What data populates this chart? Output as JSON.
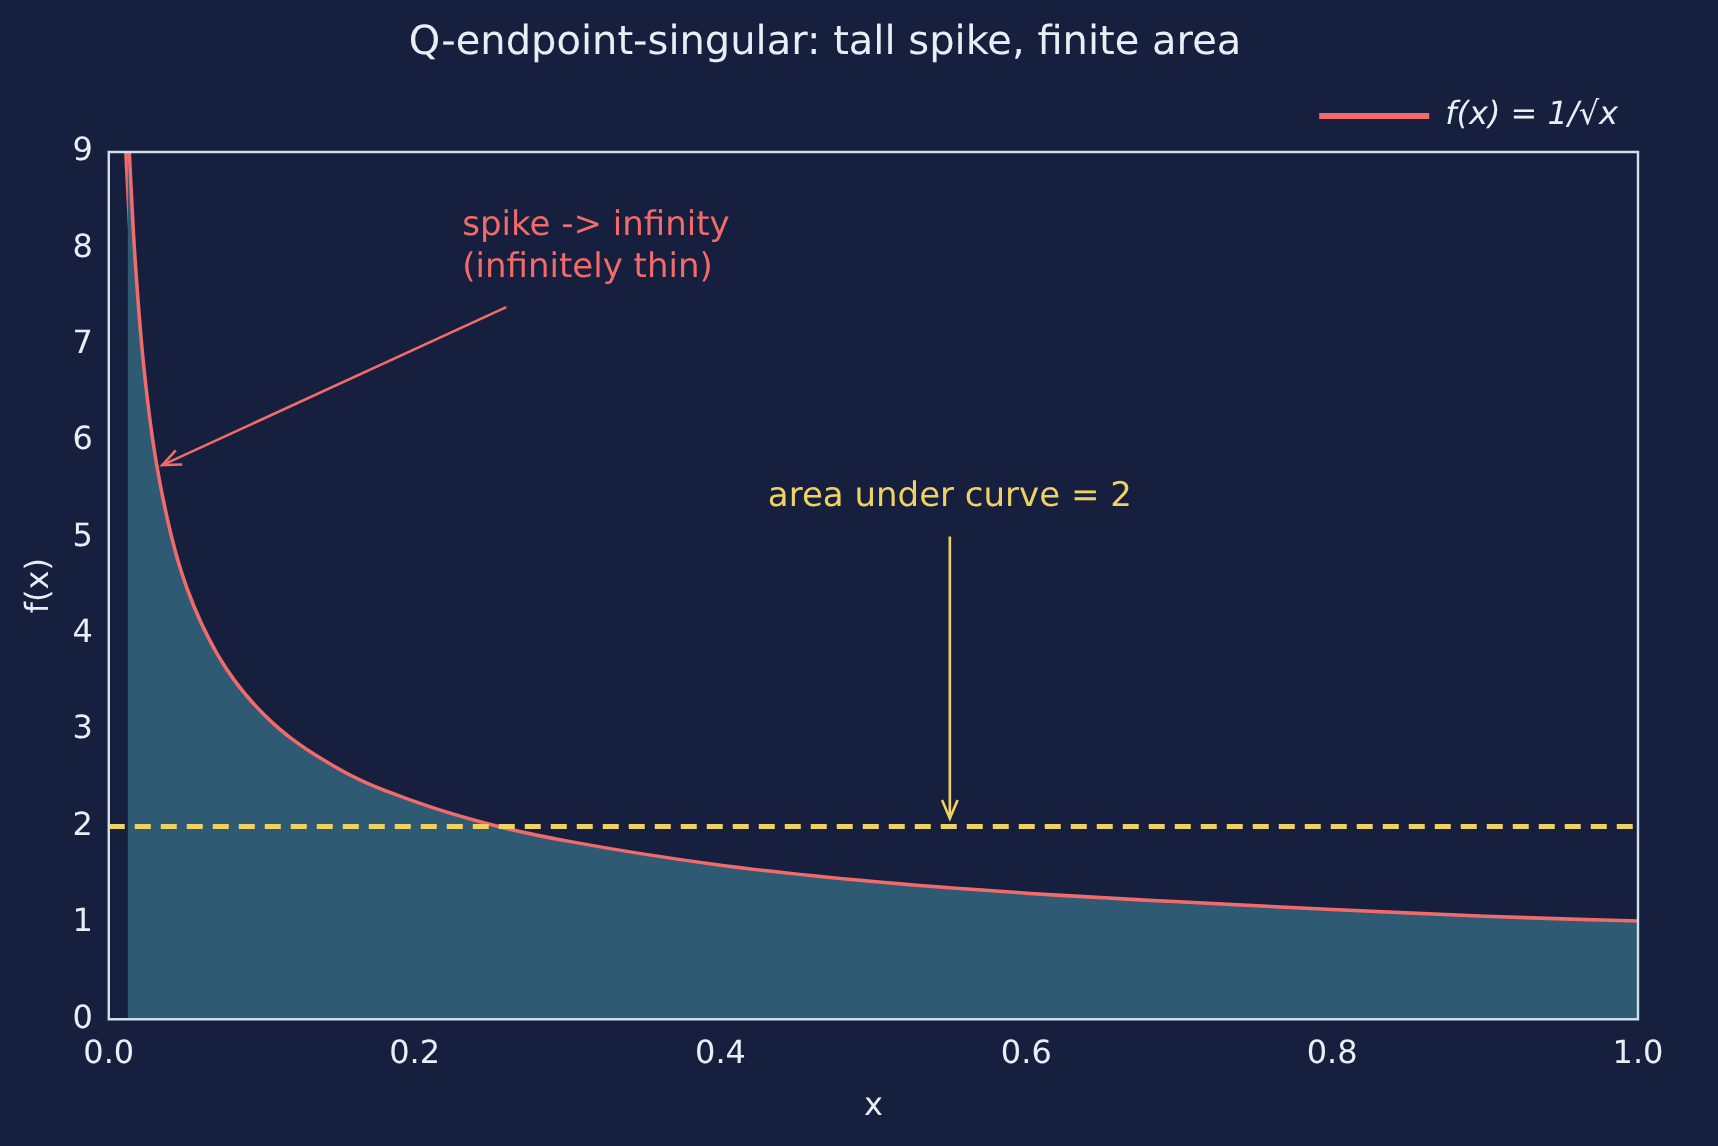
{
  "chart_data": {
    "type": "area",
    "title": "Q-endpoint-singular: tall spike, finite area",
    "xlabel": "x",
    "ylabel": "f(x)",
    "x": [
      0.0123,
      0.015,
      0.02,
      0.025,
      0.03,
      0.04,
      0.05,
      0.07,
      0.1,
      0.15,
      0.2,
      0.25,
      0.3,
      0.4,
      0.5,
      0.6,
      0.7,
      0.8,
      0.9,
      1.0
    ],
    "series": [
      {
        "color": "#2e5a74",
        "values": [
          9,
          8.16,
          7.07,
          6.32,
          5.77,
          5,
          4.47,
          3.78,
          3.16,
          2.58,
          2.24,
          2,
          1.83,
          1.58,
          1.41,
          1.29,
          1.2,
          1.12,
          1.05,
          1
        ]
      },
      {
        "type": "line",
        "name": "f(x) = 1/√x",
        "color": "#f26b6b",
        "values": [
          9,
          8.16,
          7.07,
          6.32,
          5.77,
          5,
          4.47,
          3.78,
          3.16,
          2.58,
          2.24,
          2,
          1.83,
          1.58,
          1.41,
          1.29,
          1.2,
          1.12,
          1.05,
          1
        ]
      }
    ],
    "xlim": [
      0,
      1
    ],
    "xticks": [
      {
        "value": 0,
        "label": "0.0"
      },
      {
        "value": 0.2,
        "label": "0.2"
      },
      {
        "value": 0.4,
        "label": "0.4"
      },
      {
        "value": 0.6,
        "label": "0.6"
      },
      {
        "value": 0.8,
        "label": "0.8"
      },
      {
        "value": 1,
        "label": "1.0"
      }
    ],
    "ylim": [
      0,
      9
    ],
    "yticks": [
      0,
      1,
      2,
      3,
      4,
      5,
      6,
      7,
      8,
      9
    ],
    "ref_lines": [
      {
        "axis": "y",
        "value": 2,
        "color": "#f0d264",
        "line_style": "dashed"
      }
    ],
    "annotations": [
      {
        "text": "spike -> infinity\n(infinitely thin)",
        "x": 0.035,
        "y": 5.75
      },
      {
        "text": "area under curve = 2",
        "x": 0.55,
        "y": 2
      }
    ],
    "legend": "top right",
    "grid": false
  }
}
